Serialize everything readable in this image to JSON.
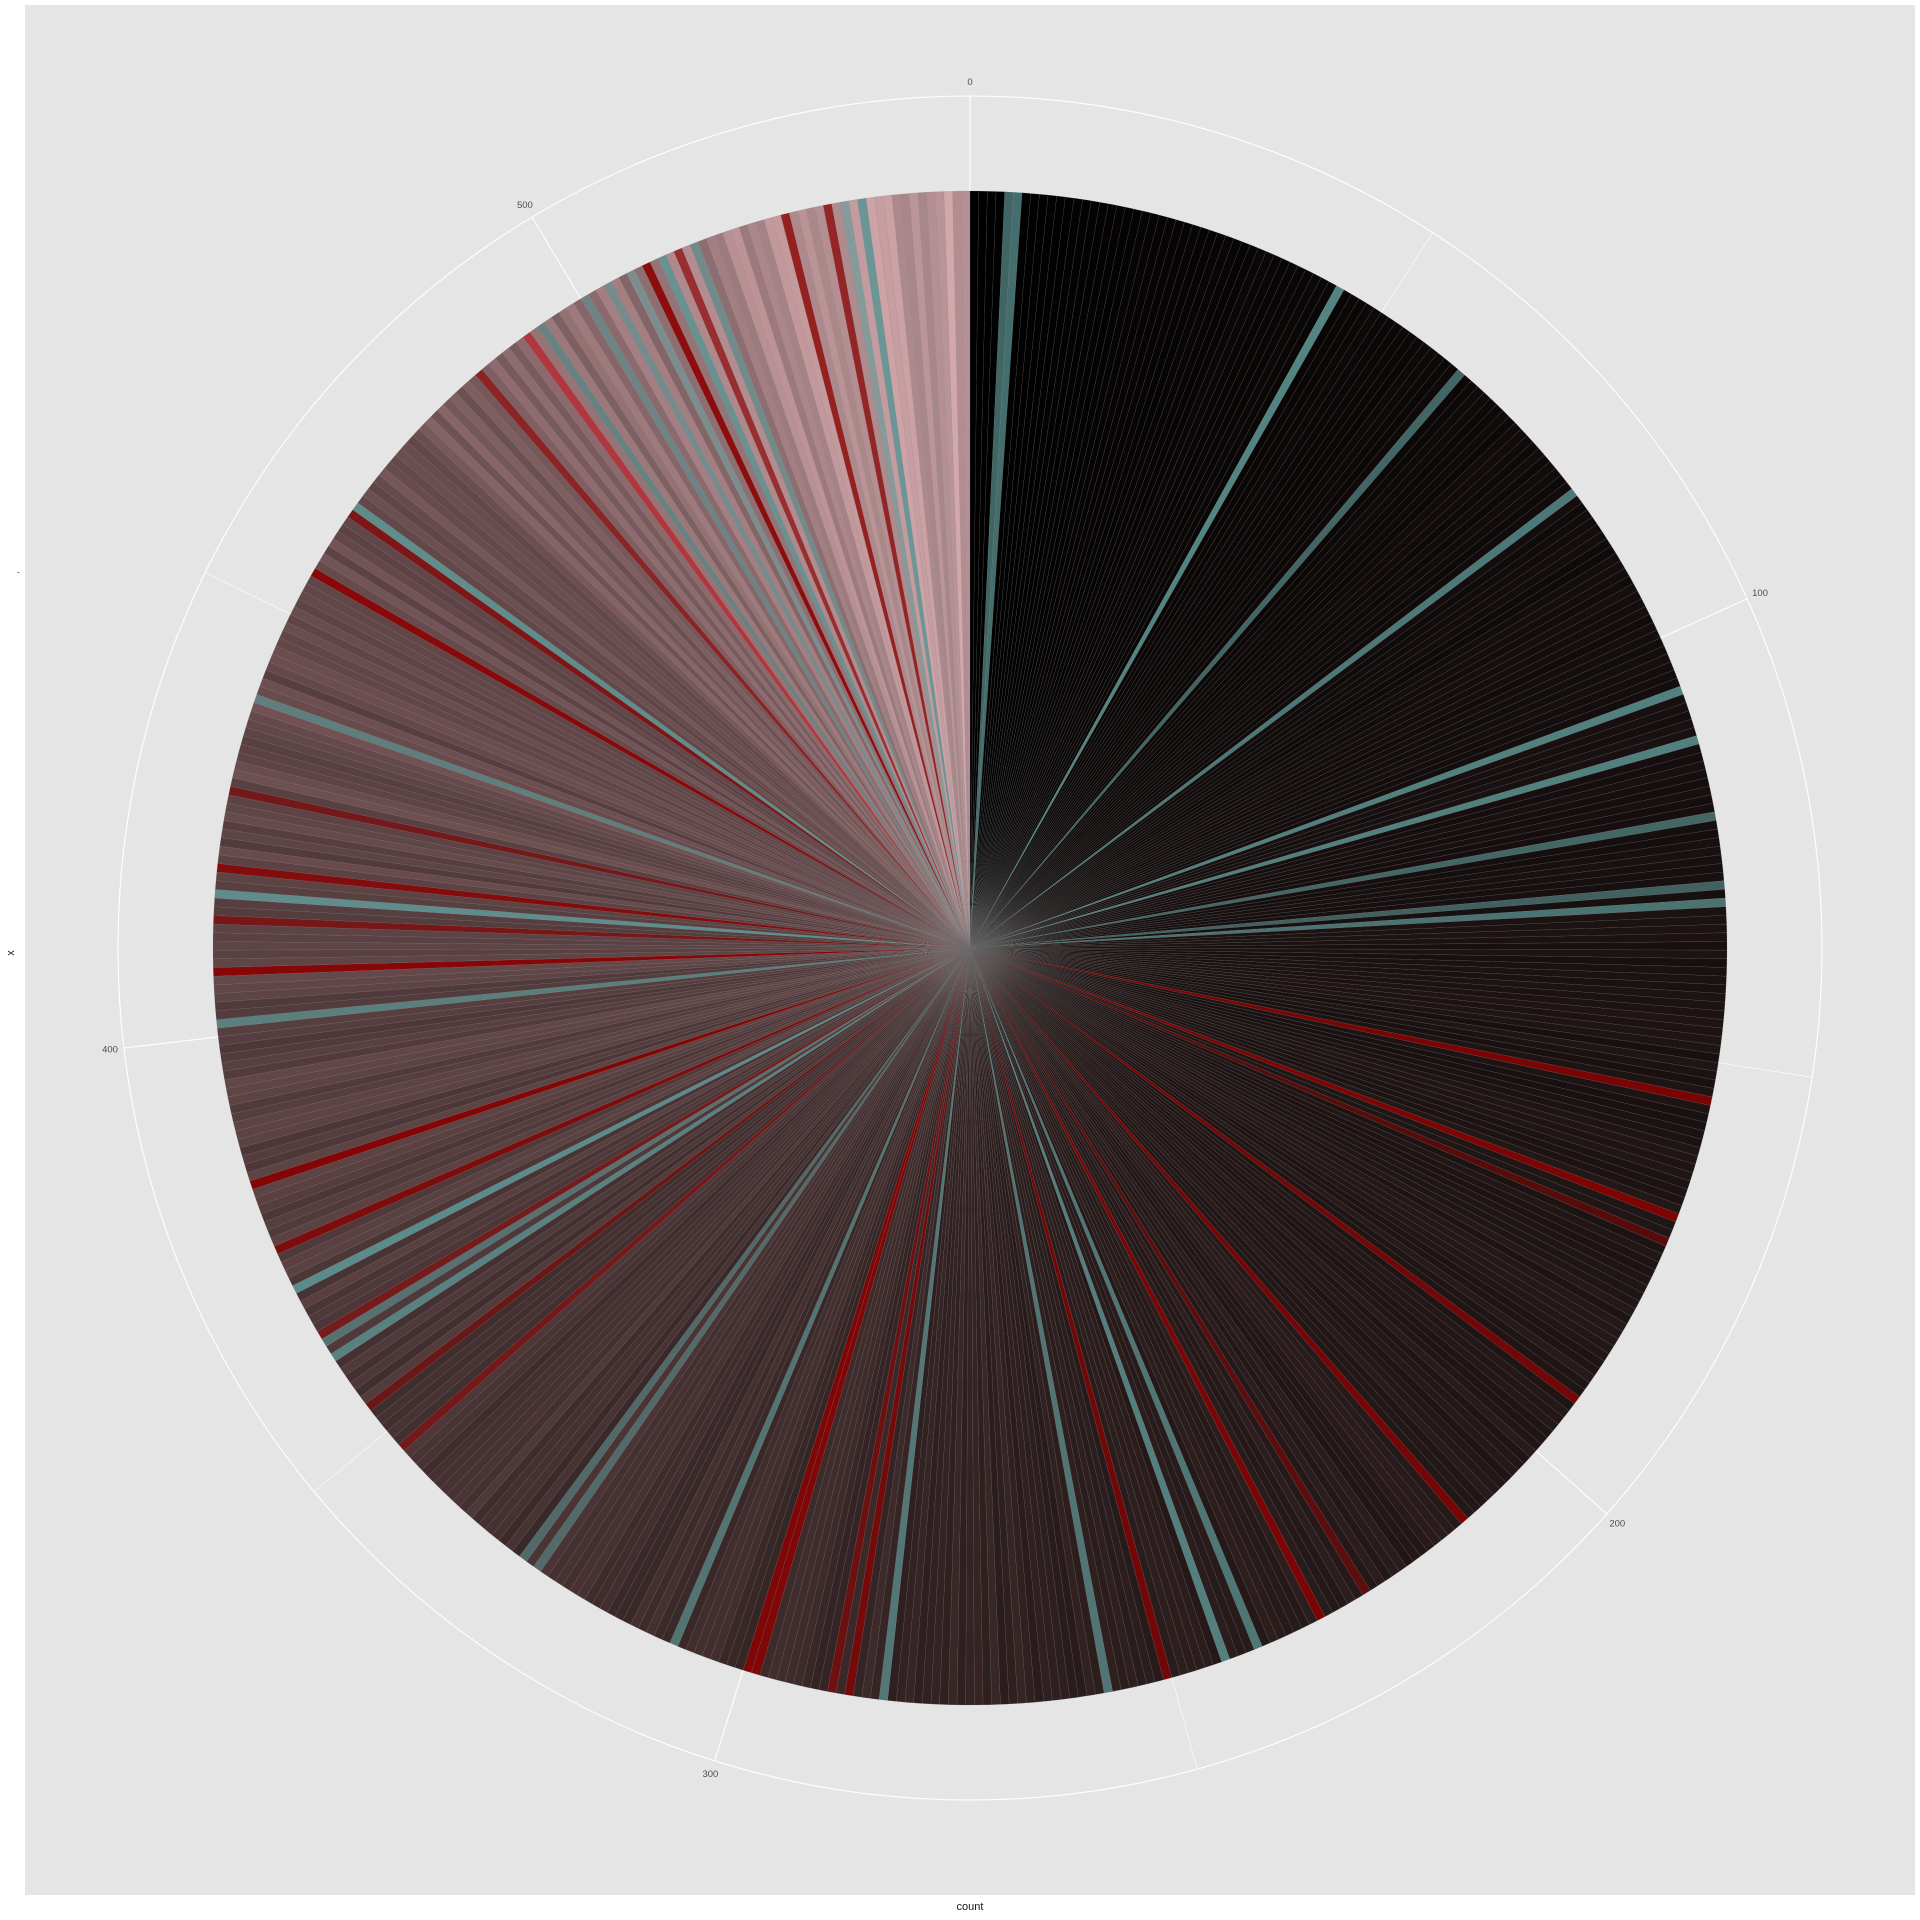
{
  "chart_data": {
    "type": "pie",
    "coord": "polar (theta = count)",
    "xlabel": "count",
    "ylabel": "x",
    "ylabel_tick": "-",
    "theta_ticks": [
      0,
      100,
      200,
      300,
      400,
      500
    ],
    "theta_total": 547,
    "slices": 547,
    "slice_value_each": 1,
    "fill_note": "one wedge per unit, fill varies continuously",
    "colors": {
      "panel_background": "#e5e5e5",
      "gridline": "#ffffff",
      "start_fill": "#000000",
      "mid_fill": "#2a1c1c",
      "end_fill": "#c8a0a4",
      "accent_teal": "#5e9a98",
      "accent_red": "#8b0000",
      "accent_bright_red": "#c0202a"
    },
    "grid": true
  }
}
